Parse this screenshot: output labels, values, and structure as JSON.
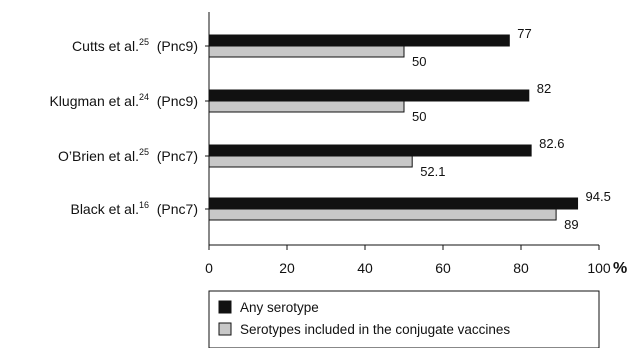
{
  "chart_data": {
    "type": "bar",
    "orientation": "horizontal",
    "categories": [
      {
        "name": "Cutts et al.",
        "sup": "25",
        "suffix": "(Pnc9)"
      },
      {
        "name": "Klugman et al.",
        "sup": "24",
        "suffix": "(Pnc9)"
      },
      {
        "name": "O’Brien et al.",
        "sup": "25",
        "suffix": "(Pnc7)"
      },
      {
        "name": "Black et al.",
        "sup": "16",
        "suffix": "(Pnc7)"
      }
    ],
    "series": [
      {
        "name": "Any serotype",
        "color": "#111111",
        "values": [
          77,
          82,
          82.6,
          94.5
        ],
        "value_labels": [
          "77",
          "82",
          "82.6",
          "94.5"
        ]
      },
      {
        "name": "Serotypes included in the conjugate vaccines",
        "color": "#c8c8c8",
        "values": [
          50,
          50,
          52.1,
          89
        ],
        "value_labels": [
          "50",
          "50",
          "52.1",
          "89"
        ]
      }
    ],
    "xlim": [
      0,
      100
    ],
    "xticks": [
      "0",
      "20",
      "40",
      "60",
      "80",
      "100"
    ],
    "x_unit": "%",
    "grid": false,
    "legend_position": "bottom"
  }
}
